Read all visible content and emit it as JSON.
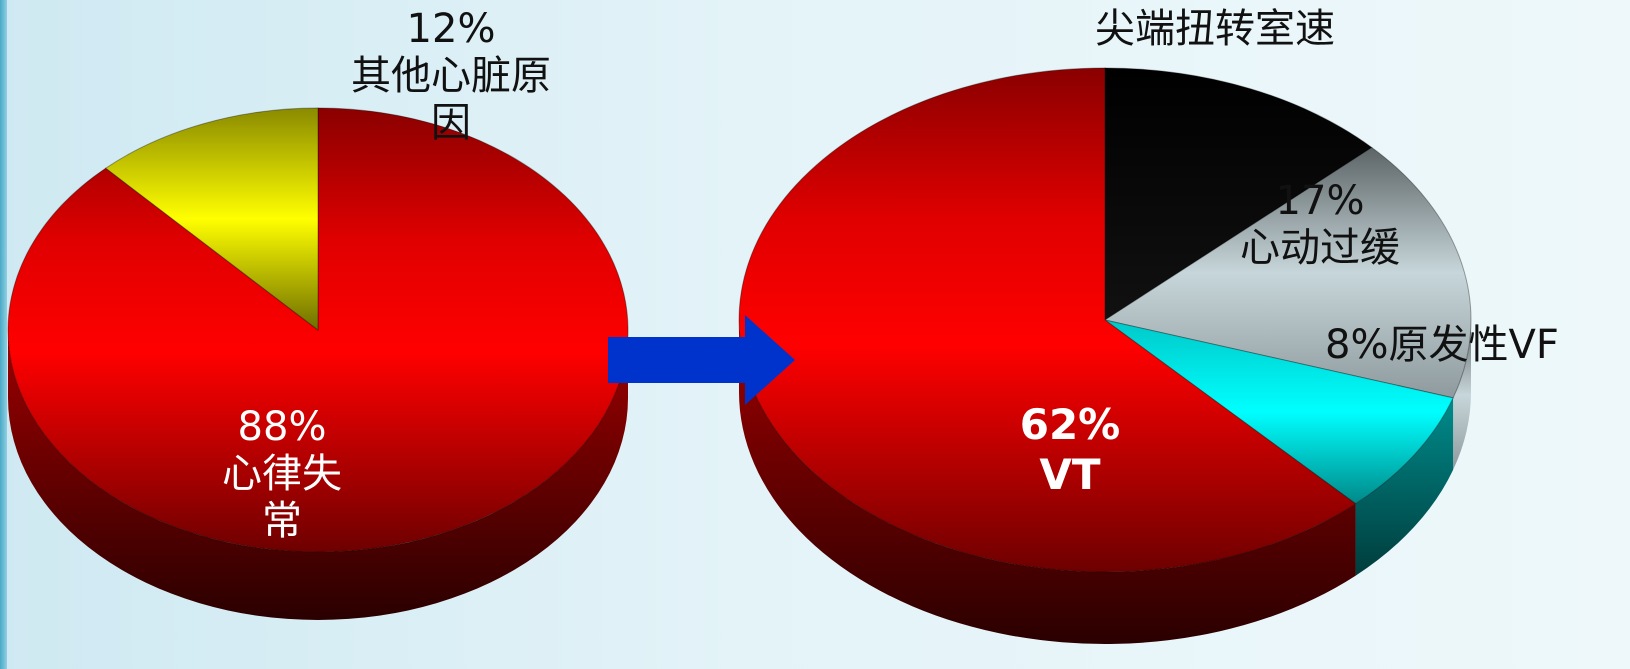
{
  "chart_data": [
    {
      "type": "pie",
      "slices": [
        {
          "percent_label": "88%",
          "name": "心律失常",
          "value": 88,
          "color": "#ff0000"
        },
        {
          "percent_label": "12%",
          "name": "其他心脏原因",
          "value": 12,
          "color": "#ffff00"
        }
      ]
    },
    {
      "type": "pie",
      "slices": [
        {
          "percent_label": "62%",
          "name": "VT",
          "value": 62,
          "color": "#ff0000"
        },
        {
          "percent_label": "",
          "name": "尖端扭转室速",
          "value": 13,
          "color": "#000000"
        },
        {
          "percent_label": "17%",
          "name": "心动过缓",
          "value": 17,
          "color": "#b8c8cc"
        },
        {
          "percent_label": "8%",
          "name": "原发性VF",
          "value": 8,
          "color": "#00f0f0"
        }
      ]
    }
  ],
  "labels": {
    "pie1_red_percent": "88%",
    "pie1_red_name_line1": "心律失",
    "pie1_red_name_line2": "常",
    "pie1_yellow_percent": "12%",
    "pie1_yellow_name_line1": "其他心脏原",
    "pie1_yellow_name_line2": "因",
    "pie2_red_percent": "62%",
    "pie2_red_name": "VT",
    "pie2_black_name": "尖端扭转室速",
    "pie2_gray_percent": "17%",
    "pie2_gray_name": "心动过缓",
    "pie2_cyan_text": "8%原发性VF"
  },
  "colors": {
    "arrow": "#0033cc"
  }
}
